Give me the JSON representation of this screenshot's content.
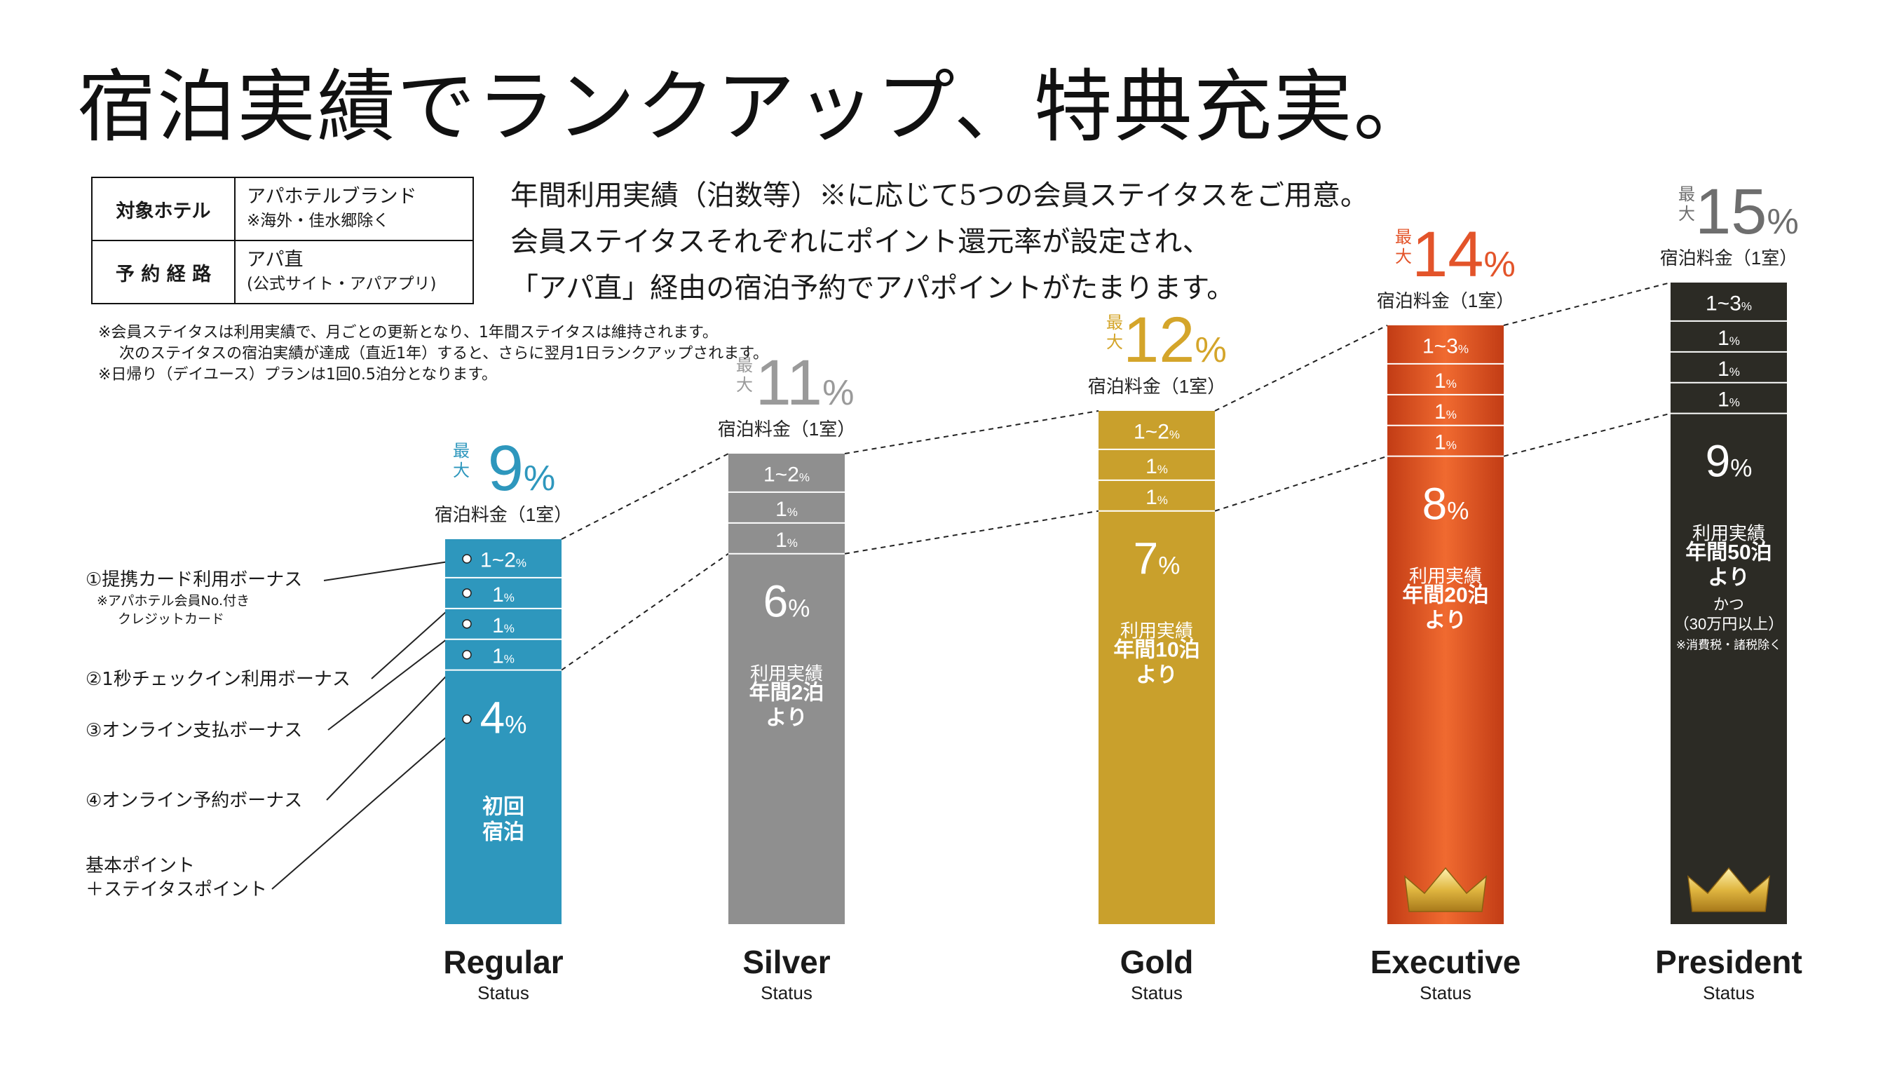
{
  "headline": "宿泊実績でランクアップ、特典充実。",
  "target_table": {
    "rows": [
      {
        "label": "対象ホテル",
        "value": "アパホテルブランド",
        "note": "※海外・佳水郷除く"
      },
      {
        "label": "予 約 経 路",
        "value": "アパ直",
        "note": "(公式サイト・アパアプリ)"
      }
    ]
  },
  "intro_lines": [
    "年間利用実績（泊数等）※に応じて5つの会員ステイタスをご用意。",
    "会員ステイタスそれぞれにポイント還元率が設定され、",
    "「アパ直」経由の宿泊予約でアパポイントがたまります。"
  ],
  "notes": [
    "※会員ステイタスは利用実績で、月ごとの更新となり、1年間ステイタスは維持されます。",
    "次のステイタスの宿泊実績が達成（直近1年）すると、さらに翌月1日ランクアップされます。",
    "※日帰り（デイユース）プランは1回0.5泊分となります。"
  ],
  "callouts": [
    {
      "label": "①提携カード利用ボーナス",
      "note1": "※アパホテル会員No.付き",
      "note2": "クレジットカード"
    },
    {
      "label": "②1秒チェックイン利用ボーナス"
    },
    {
      "label": "③オンライン支払ボーナス"
    },
    {
      "label": "④オンライン予約ボーナス"
    },
    {
      "label": "基本ポイント",
      "label2": "＋ステイタスポイント"
    }
  ],
  "chart_data": {
    "type": "bar",
    "stacked": true,
    "value_unit": "%",
    "max_prefix": "最大",
    "max_caption": "宿泊料金（1室）",
    "status_word": "Status",
    "categories": [
      "Regular",
      "Silver",
      "Gold",
      "Executive",
      "President"
    ],
    "totals": [
      9,
      11,
      12,
      14,
      15
    ],
    "colors": {
      "Regular": "#2e97bd",
      "Silver": "#8f8f8f",
      "Gold": "#c9a02c",
      "Executive": "#d94c1f",
      "President": "#2c2b25"
    },
    "total_label_colors": {
      "Regular": "#2e97bd",
      "Silver": "#9a9a9a",
      "Gold": "#d4a52a",
      "Executive": "#e3542a",
      "President": "#6e6e6e"
    },
    "segments": [
      {
        "category": "Regular",
        "values": [
          "1~2",
          "1",
          "1",
          "1",
          "4"
        ]
      },
      {
        "category": "Silver",
        "values": [
          "1~2",
          "1",
          "1",
          "6"
        ]
      },
      {
        "category": "Gold",
        "values": [
          "1~2",
          "1",
          "1",
          "7"
        ]
      },
      {
        "category": "Executive",
        "values": [
          "1~3",
          "1",
          "1",
          "1",
          "8"
        ]
      },
      {
        "category": "President",
        "values": [
          "1~3",
          "1",
          "1",
          "1",
          "9"
        ]
      }
    ],
    "requirements": [
      {
        "category": "Regular",
        "lines": [
          "初回",
          "宿泊"
        ]
      },
      {
        "category": "Silver",
        "lines": [
          "利用実績",
          "年間2泊",
          "より"
        ]
      },
      {
        "category": "Gold",
        "lines": [
          "利用実績",
          "年間10泊",
          "より"
        ]
      },
      {
        "category": "Executive",
        "lines": [
          "利用実績",
          "年間20泊",
          "より"
        ]
      },
      {
        "category": "President",
        "lines": [
          "利用実績",
          "年間50泊",
          "より",
          "かつ",
          "（30万円以上）",
          "※消費税・諸税除く"
        ]
      }
    ],
    "crown_icons": [
      "Executive",
      "President"
    ]
  }
}
